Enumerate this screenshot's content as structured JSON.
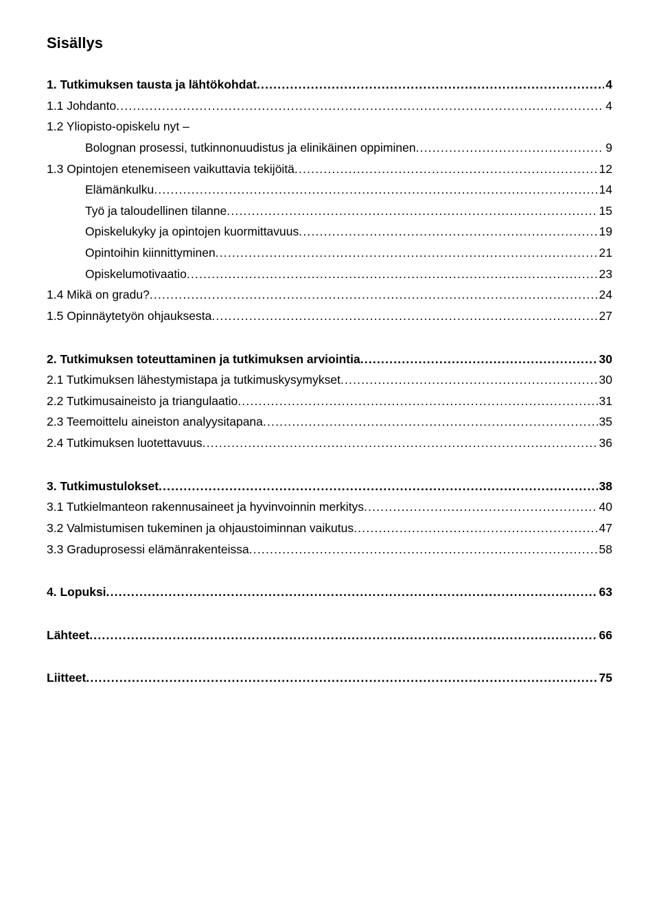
{
  "title": "Sisällys",
  "sections": [
    {
      "lines": [
        {
          "label": "1. Tutkimuksen tausta ja lähtökohdat",
          "page": "4",
          "bold": true,
          "indent": false
        },
        {
          "label": "1.1 Johdanto",
          "page": "4",
          "bold": false,
          "indent": false
        },
        {
          "label_pre": "1.2 Yliopisto-opiskelu nyt –",
          "label": "Bolognan prosessi, tutkinnonuudistus ja elinikäinen oppiminen",
          "page": "9",
          "bold": false,
          "indent": true,
          "wrap": true
        },
        {
          "label": "1.3 Opintojen etenemiseen vaikuttavia tekijöitä",
          "page": "12",
          "bold": false,
          "indent": false
        },
        {
          "label": "Elämänkulku",
          "page": "14",
          "bold": false,
          "indent": true
        },
        {
          "label": "Työ ja taloudellinen tilanne",
          "page": "15",
          "bold": false,
          "indent": true
        },
        {
          "label": "Opiskelukyky ja opintojen kuormittavuus",
          "page": "19",
          "bold": false,
          "indent": true
        },
        {
          "label": "Opintoihin kiinnittyminen",
          "page": "21",
          "bold": false,
          "indent": true
        },
        {
          "label": "Opiskelumotivaatio",
          "page": "23",
          "bold": false,
          "indent": true
        },
        {
          "label": "1.4 Mikä on gradu?",
          "page": "24",
          "bold": false,
          "indent": false
        },
        {
          "label": "1.5 Opinnäytetyön ohjauksesta",
          "page": "27",
          "bold": false,
          "indent": false
        }
      ]
    },
    {
      "lines": [
        {
          "label": "2. Tutkimuksen toteuttaminen ja tutkimuksen arviointia",
          "page": "30",
          "bold": true,
          "indent": false
        },
        {
          "label": "2.1 Tutkimuksen lähestymistapa ja tutkimuskysymykset",
          "page": "30",
          "bold": false,
          "indent": false
        },
        {
          "label": "2.2 Tutkimusaineisto ja triangulaatio",
          "page": "31",
          "bold": false,
          "indent": false
        },
        {
          "label": "2.3 Teemoittelu aineiston analyysitapana",
          "page": "35",
          "bold": false,
          "indent": false
        },
        {
          "label": "2.4 Tutkimuksen luotettavuus",
          "page": "36",
          "bold": false,
          "indent": false
        }
      ]
    },
    {
      "lines": [
        {
          "label": "3. Tutkimustulokset",
          "page": "38",
          "bold": true,
          "indent": false
        },
        {
          "label": "3.1 Tutkielmanteon rakennusaineet ja hyvinvoinnin merkitys",
          "page": "40",
          "bold": false,
          "indent": false
        },
        {
          "label": "3.2 Valmistumisen tukeminen ja ohjaustoiminnan vaikutus",
          "page": "47",
          "bold": false,
          "indent": false
        },
        {
          "label": "3.3 Graduprosessi elämänrakenteissa",
          "page": "58",
          "bold": false,
          "indent": false
        }
      ]
    },
    {
      "lines": [
        {
          "label": "4. Lopuksi",
          "page": "63",
          "bold": true,
          "indent": false
        }
      ]
    },
    {
      "lines": [
        {
          "label": "Lähteet",
          "page": "66",
          "bold": true,
          "indent": false
        }
      ]
    },
    {
      "lines": [
        {
          "label": "Liitteet",
          "page": "75",
          "bold": true,
          "indent": false
        }
      ]
    }
  ]
}
